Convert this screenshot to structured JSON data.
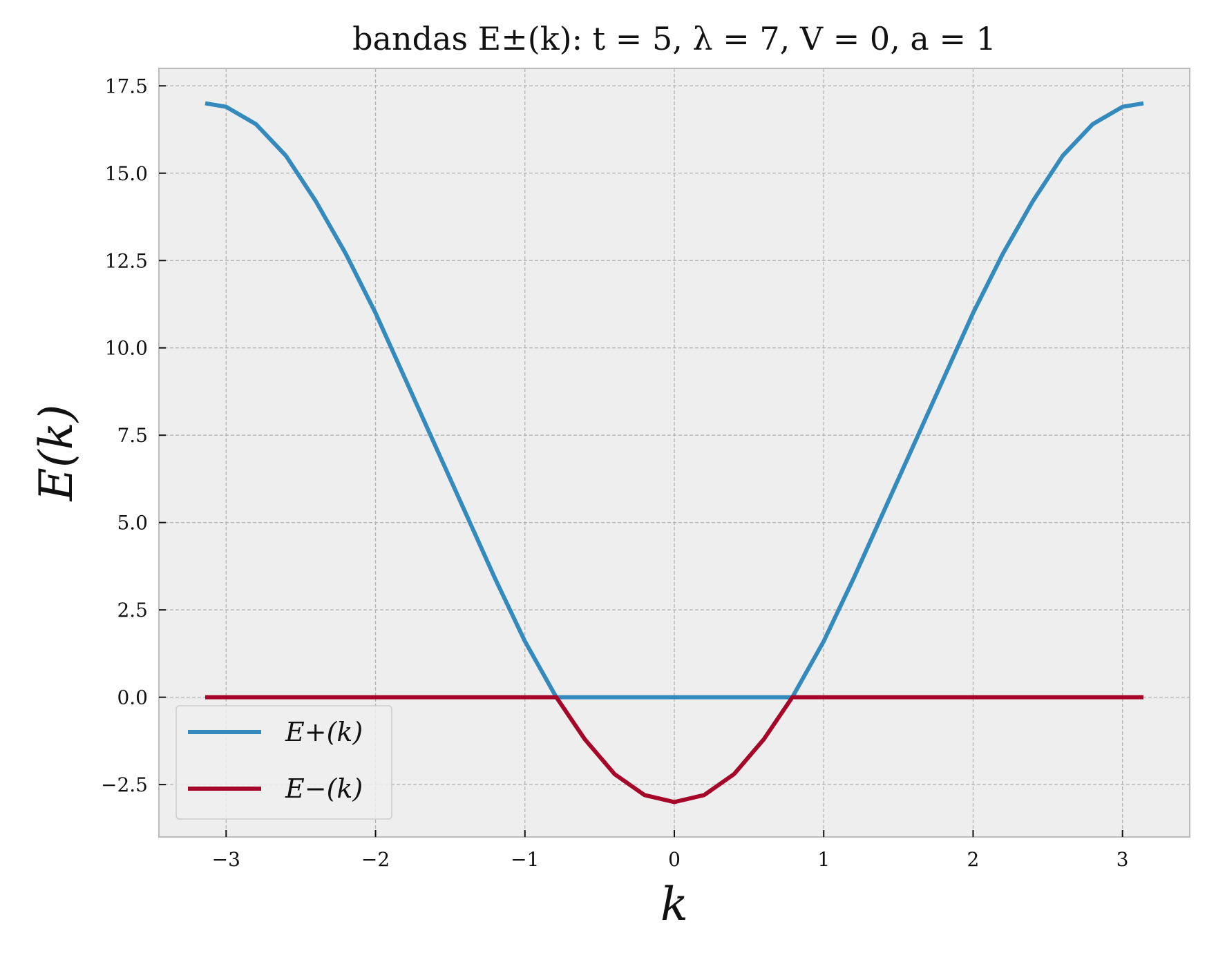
{
  "chart_data": {
    "type": "line",
    "title": "bandas E±(k): t = 5, λ = 7, V = 0, a = 1",
    "xlabel": "k",
    "ylabel": "E(k)",
    "xlim": [
      -3.45,
      3.45
    ],
    "ylim": [
      -4.0,
      18.0
    ],
    "x_ticks": [
      -3,
      -2,
      -1,
      0,
      1,
      2,
      3
    ],
    "x_tick_labels": [
      "−3",
      "−2",
      "−1",
      "0",
      "1",
      "2",
      "3"
    ],
    "y_ticks": [
      -2.5,
      0.0,
      2.5,
      5.0,
      7.5,
      10.0,
      12.5,
      15.0,
      17.5
    ],
    "y_tick_labels": [
      "−2.5",
      "0.0",
      "2.5",
      "5.0",
      "7.5",
      "10.0",
      "12.5",
      "15.0",
      "17.5"
    ],
    "grid": true,
    "legend_position": "lower-left",
    "series": [
      {
        "name": "E+(k)",
        "color": "#348abd",
        "x": [
          -3.14,
          -3.0,
          -2.8,
          -2.6,
          -2.4,
          -2.2,
          -2.0,
          -1.8,
          -1.6,
          -1.4,
          -1.2,
          -1.0,
          -0.79,
          -0.6,
          -0.4,
          -0.2,
          0.0,
          0.2,
          0.4,
          0.6,
          0.79,
          1.0,
          1.2,
          1.4,
          1.6,
          1.8,
          2.0,
          2.2,
          2.4,
          2.6,
          2.8,
          3.0,
          3.14
        ],
        "y": [
          17.0,
          16.9,
          16.4,
          15.5,
          14.2,
          12.7,
          11.0,
          9.1,
          7.2,
          5.3,
          3.4,
          1.6,
          0.0,
          0.0,
          0.0,
          0.0,
          0.0,
          0.0,
          0.0,
          0.0,
          0.0,
          1.6,
          3.4,
          5.3,
          7.2,
          9.1,
          11.0,
          12.7,
          14.2,
          15.5,
          16.4,
          16.9,
          17.0
        ]
      },
      {
        "name": "E−(k)",
        "color": "#a60628",
        "x": [
          -3.14,
          -2.5,
          -2.0,
          -1.5,
          -1.0,
          -0.79,
          -0.6,
          -0.4,
          -0.2,
          0.0,
          0.2,
          0.4,
          0.6,
          0.79,
          1.0,
          1.5,
          2.0,
          2.5,
          3.14
        ],
        "y": [
          0.0,
          0.0,
          0.0,
          0.0,
          0.0,
          0.0,
          -1.2,
          -2.2,
          -2.8,
          -3.0,
          -2.8,
          -2.2,
          -1.2,
          0.0,
          0.0,
          0.0,
          0.0,
          0.0,
          0.0
        ]
      }
    ]
  }
}
